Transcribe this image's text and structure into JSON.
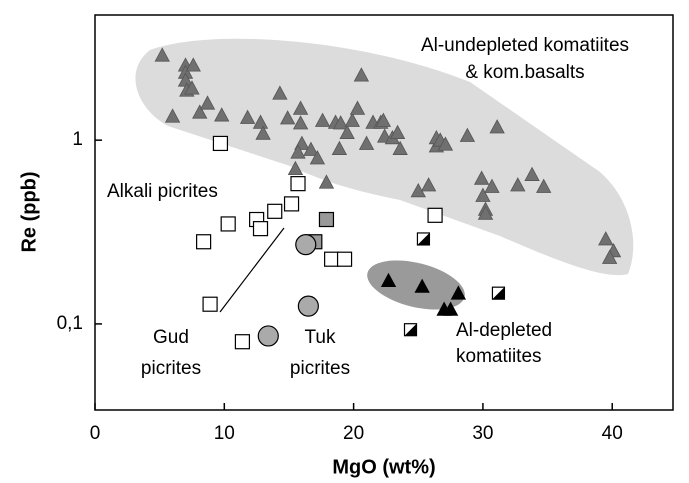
{
  "chart_data": {
    "type": "scatter",
    "xlabel": "MgO (wt%)",
    "ylabel": "Re (ppb)",
    "yscale": "log",
    "xlim": [
      0,
      44.7
    ],
    "ylim": [
      0.034,
      4.8
    ],
    "xticks": [
      0,
      10,
      20,
      30,
      40
    ],
    "yticks": [
      {
        "value": 0.1,
        "label": "0,1"
      },
      1
    ],
    "annotations": [
      "Al-undepleted komatiites",
      "& kom.basalts",
      "Alkali picrites",
      "Gud",
      "picrites",
      "Tuk",
      "picrites",
      "Al-depleted",
      "komatiites"
    ],
    "series": [
      {
        "marker": "triangle",
        "color": "#707070",
        "x": [
          5.2,
          6.0,
          7.0,
          7.0,
          7.6,
          7.0,
          7.1,
          7.5,
          8.1,
          8.7,
          9.8,
          11.8,
          12.8,
          13.0,
          14.3,
          14.9,
          15.9,
          15.9,
          16.0,
          15.7,
          15.5,
          16.7,
          17.2,
          17.6,
          18.6,
          17.9,
          18.9,
          19.0,
          19.5,
          19.9,
          20.3,
          20.6,
          21.0,
          21.5,
          22.1,
          22.3,
          22.4,
          23.0,
          23.4,
          23.6,
          25.0,
          25.8,
          26.4,
          26.4,
          26.7,
          27.1,
          28.8,
          31.1,
          29.9,
          30.0,
          30.2,
          30.2,
          30.7,
          32.7,
          33.8,
          34.7,
          39.5,
          40.1,
          39.8
        ],
        "values": [
          2.9,
          1.35,
          2.56,
          2.34,
          2.56,
          2.12,
          1.87,
          1.92,
          1.42,
          1.59,
          1.37,
          1.33,
          1.25,
          1.09,
          1.8,
          1.32,
          1.49,
          1.24,
          0.96,
          0.86,
          0.7,
          0.89,
          0.8,
          1.28,
          1.25,
          0.59,
          0.9,
          1.24,
          1.1,
          1.28,
          1.49,
          2.26,
          0.96,
          1.25,
          1.25,
          1.28,
          1.05,
          1.03,
          1.1,
          0.9,
          0.53,
          0.57,
          0.93,
          1.03,
          1.0,
          0.95,
          1.06,
          1.18,
          0.62,
          0.5,
          0.42,
          0.4,
          0.56,
          0.57,
          0.65,
          0.56,
          0.29,
          0.25,
          0.23
        ]
      },
      {
        "marker": "triangle",
        "color": "#000000",
        "x": [
          22.7,
          25.3,
          27.0,
          27.5,
          28.1
        ],
        "values": [
          0.172,
          0.16,
          0.12,
          0.12,
          0.147
        ]
      },
      {
        "marker": "square",
        "color": "#ffffff",
        "x": [
          9.7,
          15.7,
          15.2,
          13.9,
          12.5,
          12.8,
          10.3,
          8.4,
          8.9,
          11.4,
          18.3,
          19.3,
          26.3
        ],
        "values": [
          0.96,
          0.58,
          0.45,
          0.41,
          0.37,
          0.33,
          0.35,
          0.28,
          0.128,
          0.08,
          0.225,
          0.225,
          0.39
        ]
      },
      {
        "marker": "square",
        "color": "#999999",
        "x": [
          17.9,
          17.0
        ],
        "values": [
          0.37,
          0.28
        ]
      },
      {
        "marker": "circle",
        "color": "#aaaaaa",
        "x": [
          16.3,
          16.5,
          13.4
        ],
        "values": [
          0.27,
          0.125,
          0.086
        ]
      },
      {
        "marker": "half-square",
        "color": "#000000",
        "x": [
          25.4,
          31.2,
          24.4
        ],
        "values": [
          0.29,
          0.147,
          0.093
        ]
      }
    ]
  }
}
